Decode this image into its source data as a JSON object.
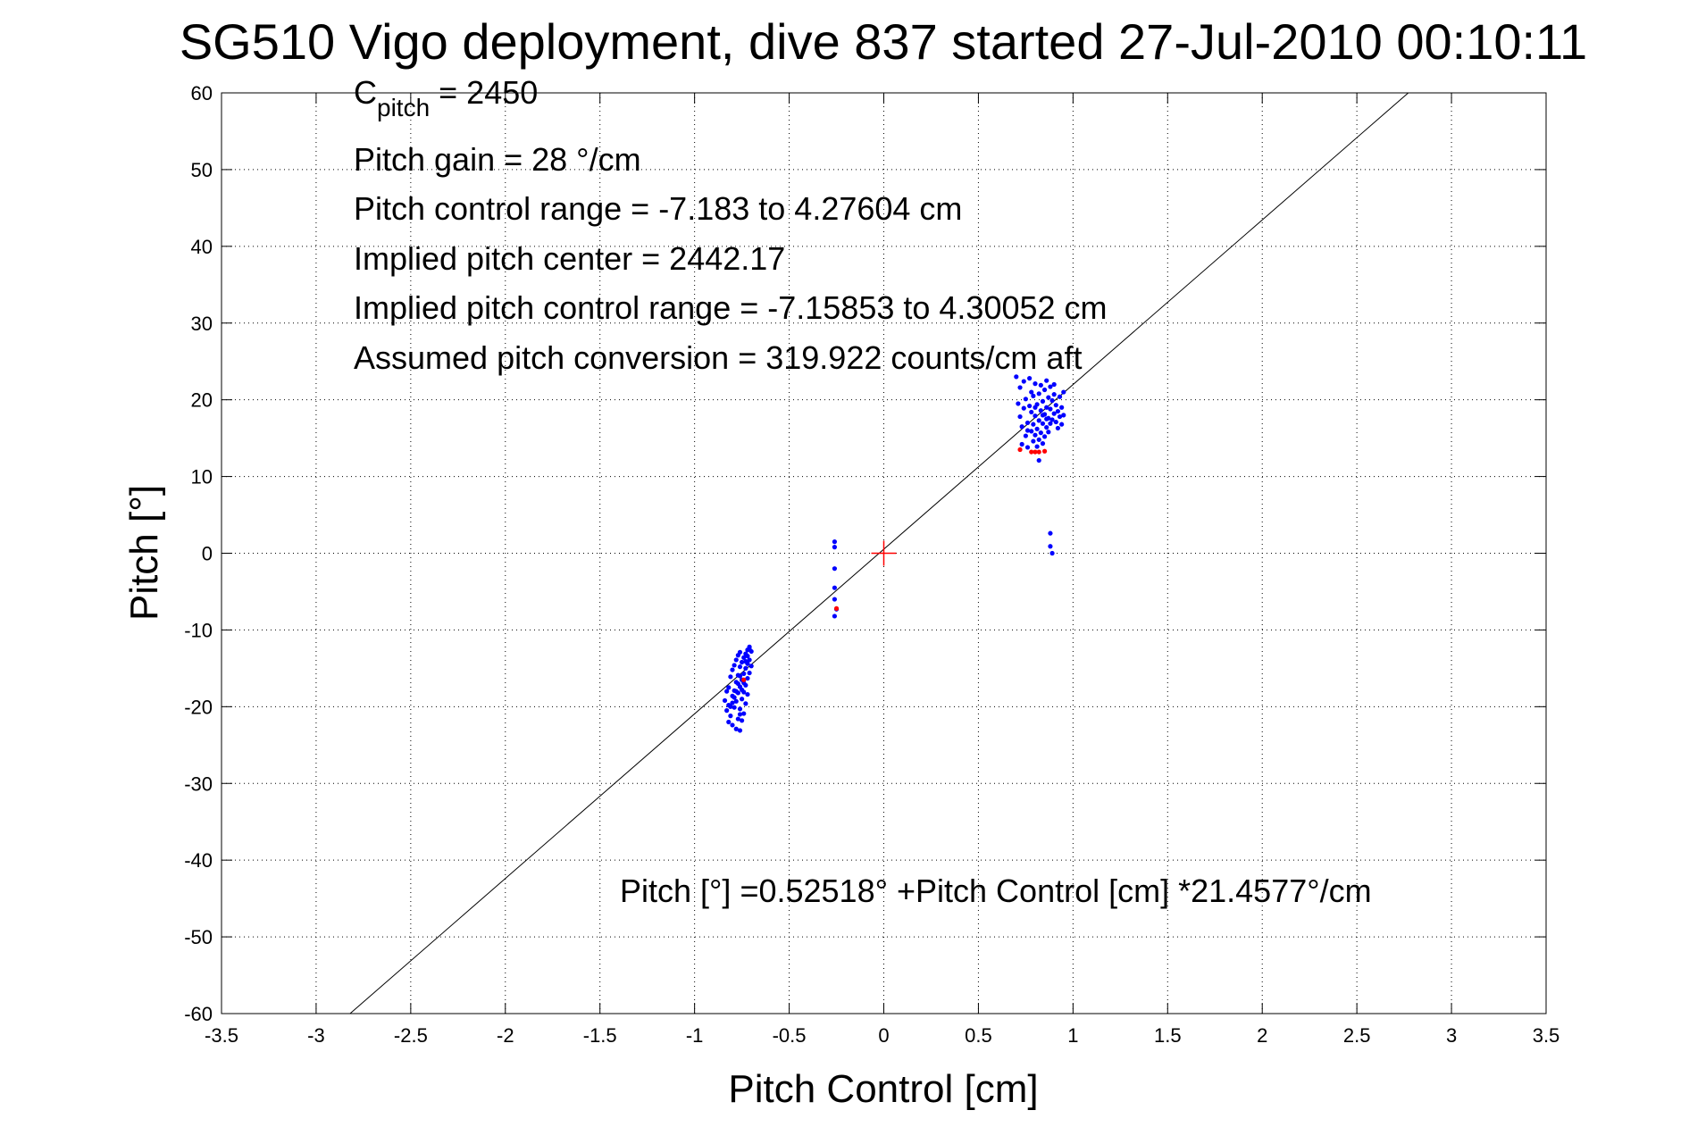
{
  "chart_data": {
    "type": "scatter",
    "title": "SG510 Vigo deployment, dive 837 started 27-Jul-2010 00:10:11",
    "xlabel": "Pitch Control [cm]",
    "ylabel": "Pitch [°]",
    "xlim": [
      -3.5,
      3.5
    ],
    "ylim": [
      -60,
      60
    ],
    "xticks": [
      -3.5,
      -3,
      -2.5,
      -2,
      -1.5,
      -1,
      -0.5,
      0,
      0.5,
      1,
      1.5,
      2,
      2.5,
      3,
      3.5
    ],
    "xtick_labels": [
      "-3.5",
      "-3",
      "-2.5",
      "-2",
      "-1.5",
      "-1",
      "-0.5",
      "0",
      "0.5",
      "1",
      "1.5",
      "2",
      "2.5",
      "3",
      "3.5"
    ],
    "yticks": [
      -60,
      -50,
      -40,
      -30,
      -20,
      -10,
      0,
      10,
      20,
      30,
      40,
      50,
      60
    ],
    "ytick_labels": [
      "-60",
      "-50",
      "-40",
      "-30",
      "-20",
      "-10",
      "0",
      "10",
      "20",
      "30",
      "40",
      "50",
      "60"
    ],
    "grid": true,
    "fit_line": {
      "intercept": 0.52518,
      "slope": 21.4577
    },
    "center_marker": {
      "x": 0,
      "y": 0
    },
    "series": [
      {
        "color": "#0000ff",
        "points": [
          [
            -0.83,
            -20.5
          ],
          [
            -0.82,
            -19.8
          ],
          [
            -0.81,
            -21.2
          ],
          [
            -0.8,
            -18.6
          ],
          [
            -0.8,
            -22.4
          ],
          [
            -0.79,
            -17.9
          ],
          [
            -0.79,
            -20.1
          ],
          [
            -0.78,
            -16.8
          ],
          [
            -0.78,
            -19.3
          ],
          [
            -0.78,
            -22.9
          ],
          [
            -0.77,
            -15.9
          ],
          [
            -0.77,
            -18.2
          ],
          [
            -0.77,
            -21.6
          ],
          [
            -0.76,
            -14.8
          ],
          [
            -0.76,
            -17.4
          ],
          [
            -0.76,
            -20.3
          ],
          [
            -0.76,
            -23.1
          ],
          [
            -0.75,
            -14.2
          ],
          [
            -0.75,
            -16.5
          ],
          [
            -0.75,
            -19.0
          ],
          [
            -0.75,
            -21.8
          ],
          [
            -0.74,
            -13.6
          ],
          [
            -0.74,
            -15.7
          ],
          [
            -0.74,
            -18.1
          ],
          [
            -0.74,
            -20.9
          ],
          [
            -0.73,
            -13.1
          ],
          [
            -0.73,
            -15.0
          ],
          [
            -0.73,
            -17.2
          ],
          [
            -0.73,
            -19.6
          ],
          [
            -0.72,
            -12.6
          ],
          [
            -0.72,
            -14.4
          ],
          [
            -0.72,
            -16.3
          ],
          [
            -0.72,
            -18.4
          ],
          [
            -0.71,
            -12.2
          ],
          [
            -0.71,
            -13.9
          ],
          [
            -0.71,
            -15.6
          ],
          [
            -0.7,
            -12.8
          ],
          [
            -0.7,
            -14.7
          ],
          [
            -0.82,
            -17.5
          ],
          [
            -0.81,
            -16.1
          ],
          [
            -0.8,
            -15.2
          ],
          [
            -0.79,
            -14.6
          ],
          [
            -0.78,
            -13.9
          ],
          [
            -0.77,
            -13.3
          ],
          [
            -0.76,
            -12.9
          ],
          [
            -0.84,
            -19.2
          ],
          [
            -0.83,
            -18.0
          ],
          [
            -0.82,
            -22.0
          ],
          [
            -0.81,
            -20.0
          ],
          [
            -0.8,
            -19.5
          ],
          [
            -0.79,
            -18.8
          ],
          [
            -0.78,
            -18.0
          ],
          [
            -0.77,
            -17.0
          ],
          [
            -0.76,
            -16.0
          ],
          [
            -0.75,
            -17.8
          ],
          [
            -0.74,
            -16.9
          ],
          [
            -0.73,
            -14.1
          ],
          [
            -0.72,
            -13.4
          ],
          [
            -0.71,
            -12.5
          ],
          [
            -0.76,
            -21.0
          ],
          [
            -0.26,
            1.5
          ],
          [
            -0.26,
            0.8
          ],
          [
            -0.26,
            -2.0
          ],
          [
            -0.26,
            -4.5
          ],
          [
            -0.26,
            -6.0
          ],
          [
            -0.26,
            -8.2
          ],
          [
            -0.25,
            -7.3
          ],
          [
            0.7,
            23.0
          ],
          [
            0.71,
            19.5
          ],
          [
            0.72,
            17.8
          ],
          [
            0.72,
            21.6
          ],
          [
            0.73,
            14.2
          ],
          [
            0.73,
            16.5
          ],
          [
            0.74,
            18.9
          ],
          [
            0.74,
            22.4
          ],
          [
            0.75,
            15.3
          ],
          [
            0.75,
            20.1
          ],
          [
            0.76,
            13.8
          ],
          [
            0.76,
            17.0
          ],
          [
            0.77,
            19.2
          ],
          [
            0.77,
            22.8
          ],
          [
            0.78,
            15.9
          ],
          [
            0.78,
            18.4
          ],
          [
            0.78,
            21.0
          ],
          [
            0.79,
            14.6
          ],
          [
            0.79,
            16.8
          ],
          [
            0.79,
            20.5
          ],
          [
            0.8,
            15.4
          ],
          [
            0.8,
            17.9
          ],
          [
            0.8,
            22.1
          ],
          [
            0.81,
            13.9
          ],
          [
            0.81,
            16.2
          ],
          [
            0.81,
            19.4
          ],
          [
            0.82,
            14.8
          ],
          [
            0.82,
            17.3
          ],
          [
            0.82,
            20.8
          ],
          [
            0.82,
            12.1
          ],
          [
            0.83,
            15.7
          ],
          [
            0.83,
            18.6
          ],
          [
            0.83,
            21.9
          ],
          [
            0.84,
            14.3
          ],
          [
            0.84,
            16.9
          ],
          [
            0.84,
            19.8
          ],
          [
            0.85,
            15.2
          ],
          [
            0.85,
            18.1
          ],
          [
            0.85,
            21.3
          ],
          [
            0.86,
            16.4
          ],
          [
            0.86,
            19.0
          ],
          [
            0.86,
            22.5
          ],
          [
            0.87,
            15.8
          ],
          [
            0.87,
            17.6
          ],
          [
            0.87,
            20.3
          ],
          [
            0.88,
            16.9
          ],
          [
            0.88,
            18.8
          ],
          [
            0.88,
            21.7
          ],
          [
            0.89,
            17.4
          ],
          [
            0.89,
            19.9
          ],
          [
            0.9,
            18.2
          ],
          [
            0.9,
            20.7
          ],
          [
            0.91,
            17.1
          ],
          [
            0.91,
            19.3
          ],
          [
            0.92,
            16.3
          ],
          [
            0.92,
            18.5
          ],
          [
            0.93,
            17.8
          ],
          [
            0.93,
            20.4
          ],
          [
            0.94,
            16.8
          ],
          [
            0.94,
            19.0
          ],
          [
            0.95,
            18.0
          ],
          [
            0.95,
            21.0
          ],
          [
            0.88,
            2.6
          ],
          [
            0.88,
            0.9
          ],
          [
            0.89,
            0.0
          ],
          [
            0.76,
            16.0
          ],
          [
            0.8,
            19.0
          ],
          [
            0.84,
            18.0
          ],
          [
            0.86,
            17.5
          ],
          [
            0.9,
            22.0
          ]
        ]
      },
      {
        "color": "#ff0000",
        "points": [
          [
            0.72,
            13.5
          ],
          [
            0.78,
            13.2
          ],
          [
            0.8,
            13.2
          ],
          [
            0.82,
            13.2
          ],
          [
            0.85,
            13.3
          ],
          [
            -0.74,
            -16.5
          ],
          [
            -0.25,
            -7.2
          ]
        ]
      }
    ],
    "annotations": {
      "cpitch_main": "C",
      "cpitch_sub": "pitch",
      "cpitch_rest": " = 2450",
      "pitch_gain": "Pitch gain = 28 °/cm",
      "control_range": "Pitch control range = -7.183 to 4.27604 cm",
      "implied_center": "Implied pitch center = 2442.17",
      "implied_range": "Implied pitch control range = -7.15853 to 4.30052 cm",
      "conversion": "Assumed pitch conversion = 319.922 counts/cm aft",
      "fit_equation": "Pitch [°] =0.52518° +Pitch Control [cm] *21.4577°/cm"
    }
  }
}
